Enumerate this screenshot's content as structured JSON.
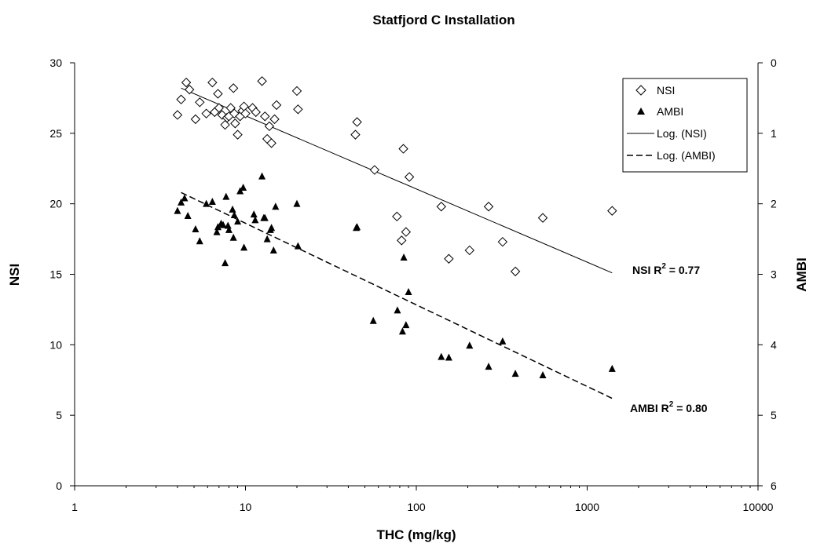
{
  "chart_data": {
    "type": "scatter",
    "title": "Statfjord C Installation",
    "xlabel": "THC (mg/kg)",
    "ylabel": "NSI",
    "y2label": "AMBI",
    "x_scale": "log",
    "xlim": [
      1,
      10000
    ],
    "ylim": [
      0,
      30
    ],
    "y2lim": [
      6,
      0
    ],
    "x_ticks": [
      "1",
      "10",
      "100",
      "1000",
      "10000"
    ],
    "y_ticks": [
      "0",
      "5",
      "10",
      "15",
      "20",
      "25",
      "30"
    ],
    "y2_ticks": [
      "6",
      "5",
      "4",
      "3",
      "2",
      "1",
      "0"
    ],
    "grid": false,
    "legend_position": "top-right",
    "legend": [
      "NSI",
      "AMBI",
      "Log. (NSI)",
      "Log. (AMBI)"
    ],
    "series": [
      {
        "name": "NSI",
        "marker": "diamond-open",
        "axis": "left",
        "x": [
          4.0,
          4.2,
          4.5,
          4.7,
          5.1,
          5.4,
          5.9,
          6.4,
          6.6,
          6.9,
          7.0,
          7.3,
          7.6,
          7.8,
          8.0,
          8.2,
          8.5,
          8.6,
          8.7,
          9.0,
          9.3,
          9.6,
          9.8,
          10.0,
          11.0,
          11.5,
          12.5,
          13.0,
          13.4,
          13.8,
          14.2,
          14.8,
          15.2,
          20.0,
          20.3,
          44,
          45,
          57,
          77,
          82,
          84,
          87,
          91,
          140,
          155,
          205,
          265,
          320,
          380,
          550,
          1400
        ],
        "y": [
          26.3,
          27.4,
          28.6,
          28.1,
          26.0,
          27.2,
          26.4,
          28.6,
          26.5,
          27.8,
          26.8,
          26.3,
          25.6,
          26.1,
          26.2,
          26.8,
          28.2,
          26.4,
          25.7,
          24.9,
          26.2,
          26.6,
          26.9,
          26.4,
          26.8,
          26.5,
          28.7,
          26.2,
          24.6,
          25.5,
          24.3,
          26.0,
          27.0,
          28.0,
          26.7,
          24.9,
          25.8,
          22.4,
          19.1,
          17.4,
          23.9,
          18.0,
          21.9,
          19.8,
          16.1,
          16.7,
          19.8,
          17.3,
          15.2,
          19.0,
          19.5
        ]
      },
      {
        "name": "AMBI",
        "marker": "triangle-filled",
        "axis": "right",
        "x": [
          4.0,
          4.2,
          4.4,
          4.6,
          5.1,
          5.4,
          5.9,
          6.4,
          6.8,
          6.9,
          7.2,
          7.4,
          7.6,
          7.7,
          7.9,
          8.0,
          8.4,
          8.5,
          8.6,
          9.0,
          9.3,
          9.7,
          9.8,
          11.2,
          11.4,
          12.5,
          12.8,
          13.0,
          13.4,
          14.0,
          14.2,
          14.6,
          15.0,
          20.0,
          20.3,
          44.5,
          45.0,
          56.0,
          77.5,
          83.0,
          84.5,
          87.0,
          90.0,
          140.0,
          155.0,
          205.0,
          265.0,
          320.0,
          380.0,
          550.0,
          1400.0
        ],
        "y": [
          2.1,
          1.98,
          1.92,
          2.17,
          2.36,
          2.53,
          2.0,
          1.97,
          2.4,
          2.33,
          2.28,
          2.3,
          2.84,
          1.9,
          2.31,
          2.37,
          2.08,
          2.48,
          2.16,
          2.25,
          1.82,
          1.77,
          2.62,
          2.15,
          2.23,
          1.61,
          2.2,
          2.2,
          2.5,
          2.37,
          2.34,
          2.66,
          2.04,
          2.0,
          2.6,
          2.34,
          2.33,
          3.66,
          3.51,
          3.81,
          2.76,
          3.72,
          3.25,
          4.17,
          4.18,
          4.01,
          4.31,
          3.95,
          4.41,
          4.43,
          4.34
        ]
      },
      {
        "name": "Log. (NSI)",
        "type": "trendline",
        "style": "solid",
        "axis": "left",
        "x": [
          4.2,
          1400
        ],
        "y": [
          28.2,
          15.1
        ]
      },
      {
        "name": "Log. (AMBI)",
        "type": "trendline",
        "style": "dashed",
        "axis": "left",
        "x": [
          4.2,
          1400
        ],
        "y": [
          20.8,
          6.2
        ]
      }
    ],
    "annotations": [
      {
        "label": "NSI R",
        "superscript": "2",
        "value": " = 0.77"
      },
      {
        "label": "AMBI R",
        "superscript": "2",
        "value": " = 0.80"
      }
    ]
  }
}
